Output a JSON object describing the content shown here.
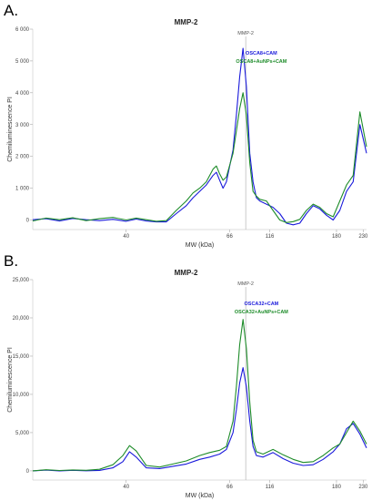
{
  "chart_data": [
    {
      "panel_label": "A.",
      "type": "line",
      "title": "MMP-2",
      "xlabel": "MW (kDa)",
      "ylabel": "Chemiluminescence PI",
      "ylim": [
        -300,
        6000
      ],
      "yticks": [
        0,
        1000,
        2000,
        3000,
        4000,
        5000,
        6000
      ],
      "ytick_labels": [
        "0",
        "1 000",
        "2 000",
        "3 000",
        "4 000",
        "5 000",
        "6 000"
      ],
      "xticks": [
        {
          "label": "40",
          "pos": 0.28
        },
        {
          "label": "66",
          "pos": 0.59
        },
        {
          "label": "116",
          "pos": 0.71
        },
        {
          "label": "180",
          "pos": 0.91
        },
        {
          "label": "230",
          "pos": 0.99
        }
      ],
      "marker": {
        "label": "MMP-2",
        "pos": 0.638
      },
      "legend": "upper-middle-right",
      "series": [
        {
          "name": "OSCA8+CAM",
          "color": "#1a1adb",
          "x": [
            0,
            0.04,
            0.08,
            0.12,
            0.16,
            0.2,
            0.24,
            0.28,
            0.31,
            0.34,
            0.37,
            0.4,
            0.43,
            0.46,
            0.48,
            0.5,
            0.52,
            0.54,
            0.55,
            0.56,
            0.57,
            0.58,
            0.6,
            0.61,
            0.62,
            0.63,
            0.64,
            0.65,
            0.66,
            0.67,
            0.68,
            0.7,
            0.72,
            0.74,
            0.76,
            0.78,
            0.8,
            0.82,
            0.84,
            0.86,
            0.88,
            0.9,
            0.92,
            0.94,
            0.96,
            0.98,
            1.0
          ],
          "values": [
            10,
            40,
            -30,
            50,
            10,
            -20,
            20,
            -40,
            30,
            -30,
            -60,
            -60,
            200,
            450,
            700,
            900,
            1100,
            1400,
            1500,
            1250,
            1000,
            1200,
            2200,
            3300,
            4500,
            5400,
            4200,
            2100,
            1200,
            700,
            600,
            500,
            400,
            200,
            -100,
            -150,
            -100,
            200,
            450,
            350,
            150,
            0,
            300,
            900,
            1200,
            3000,
            2100
          ]
        },
        {
          "name": "OSCA8+AuNPs+CAM",
          "color": "#1e8c2a",
          "x": [
            0,
            0.04,
            0.08,
            0.12,
            0.16,
            0.2,
            0.24,
            0.28,
            0.31,
            0.34,
            0.37,
            0.4,
            0.43,
            0.46,
            0.48,
            0.5,
            0.52,
            0.54,
            0.55,
            0.56,
            0.57,
            0.58,
            0.6,
            0.61,
            0.62,
            0.63,
            0.64,
            0.65,
            0.66,
            0.67,
            0.68,
            0.7,
            0.72,
            0.74,
            0.76,
            0.78,
            0.8,
            0.82,
            0.84,
            0.86,
            0.88,
            0.9,
            0.92,
            0.94,
            0.96,
            0.98,
            1.0
          ],
          "values": [
            -30,
            60,
            10,
            70,
            -20,
            40,
            80,
            0,
            60,
            10,
            -40,
            -20,
            300,
            600,
            850,
            1000,
            1200,
            1600,
            1700,
            1450,
            1250,
            1350,
            2100,
            2800,
            3500,
            4000,
            3300,
            1800,
            900,
            750,
            650,
            600,
            300,
            0,
            -80,
            -50,
            20,
            300,
            500,
            400,
            200,
            100,
            600,
            1100,
            1400,
            3400,
            2300
          ]
        }
      ]
    },
    {
      "panel_label": "B.",
      "type": "line",
      "title": "MMP-2",
      "xlabel": "MW (kDa)",
      "ylabel": "Chemiluminescence PI",
      "ylim": [
        -1200,
        25000
      ],
      "yticks": [
        0,
        5000,
        10000,
        15000,
        20000,
        25000
      ],
      "ytick_labels": [
        "0",
        "5,000",
        "10,000",
        "15,000",
        "20,000",
        "25,000"
      ],
      "xticks": [
        {
          "label": "40",
          "pos": 0.28
        },
        {
          "label": "66",
          "pos": 0.59
        },
        {
          "label": "116",
          "pos": 0.71
        },
        {
          "label": "180",
          "pos": 0.91
        },
        {
          "label": "230",
          "pos": 0.99
        }
      ],
      "marker": {
        "label": "MMP-2",
        "pos": 0.638
      },
      "legend": "upper-middle-right",
      "series": [
        {
          "name": "OSCA32+CAM",
          "color": "#1a1adb",
          "x": [
            0,
            0.04,
            0.08,
            0.12,
            0.16,
            0.2,
            0.24,
            0.27,
            0.29,
            0.31,
            0.34,
            0.38,
            0.42,
            0.46,
            0.5,
            0.53,
            0.56,
            0.58,
            0.6,
            0.61,
            0.62,
            0.63,
            0.64,
            0.65,
            0.66,
            0.67,
            0.69,
            0.72,
            0.75,
            0.78,
            0.81,
            0.84,
            0.87,
            0.9,
            0.92,
            0.94,
            0.96,
            0.98,
            1.0
          ],
          "values": [
            0,
            100,
            0,
            80,
            20,
            60,
            400,
            1200,
            2500,
            1800,
            400,
            300,
            600,
            900,
            1500,
            1800,
            2200,
            2800,
            5000,
            8000,
            11500,
            13500,
            11000,
            6500,
            3200,
            2000,
            1800,
            2400,
            1600,
            1000,
            700,
            800,
            1500,
            2500,
            3500,
            5500,
            6200,
            4800,
            3000
          ]
        },
        {
          "name": "OSCA32+AuNPs+CAM",
          "color": "#1e8c2a",
          "x": [
            0,
            0.04,
            0.08,
            0.12,
            0.16,
            0.2,
            0.24,
            0.27,
            0.29,
            0.31,
            0.34,
            0.38,
            0.42,
            0.46,
            0.5,
            0.53,
            0.56,
            0.58,
            0.6,
            0.61,
            0.62,
            0.63,
            0.64,
            0.65,
            0.66,
            0.67,
            0.69,
            0.72,
            0.75,
            0.78,
            0.81,
            0.84,
            0.87,
            0.9,
            0.92,
            0.94,
            0.96,
            0.98,
            1.0
          ],
          "values": [
            0,
            150,
            50,
            120,
            80,
            200,
            800,
            2000,
            3300,
            2600,
            700,
            500,
            900,
            1300,
            2000,
            2400,
            2700,
            3200,
            6500,
            11000,
            16500,
            19800,
            16000,
            9000,
            4000,
            2500,
            2200,
            2800,
            2100,
            1500,
            1100,
            1200,
            2000,
            3000,
            3500,
            5000,
            6500,
            5200,
            3500
          ]
        }
      ]
    }
  ]
}
